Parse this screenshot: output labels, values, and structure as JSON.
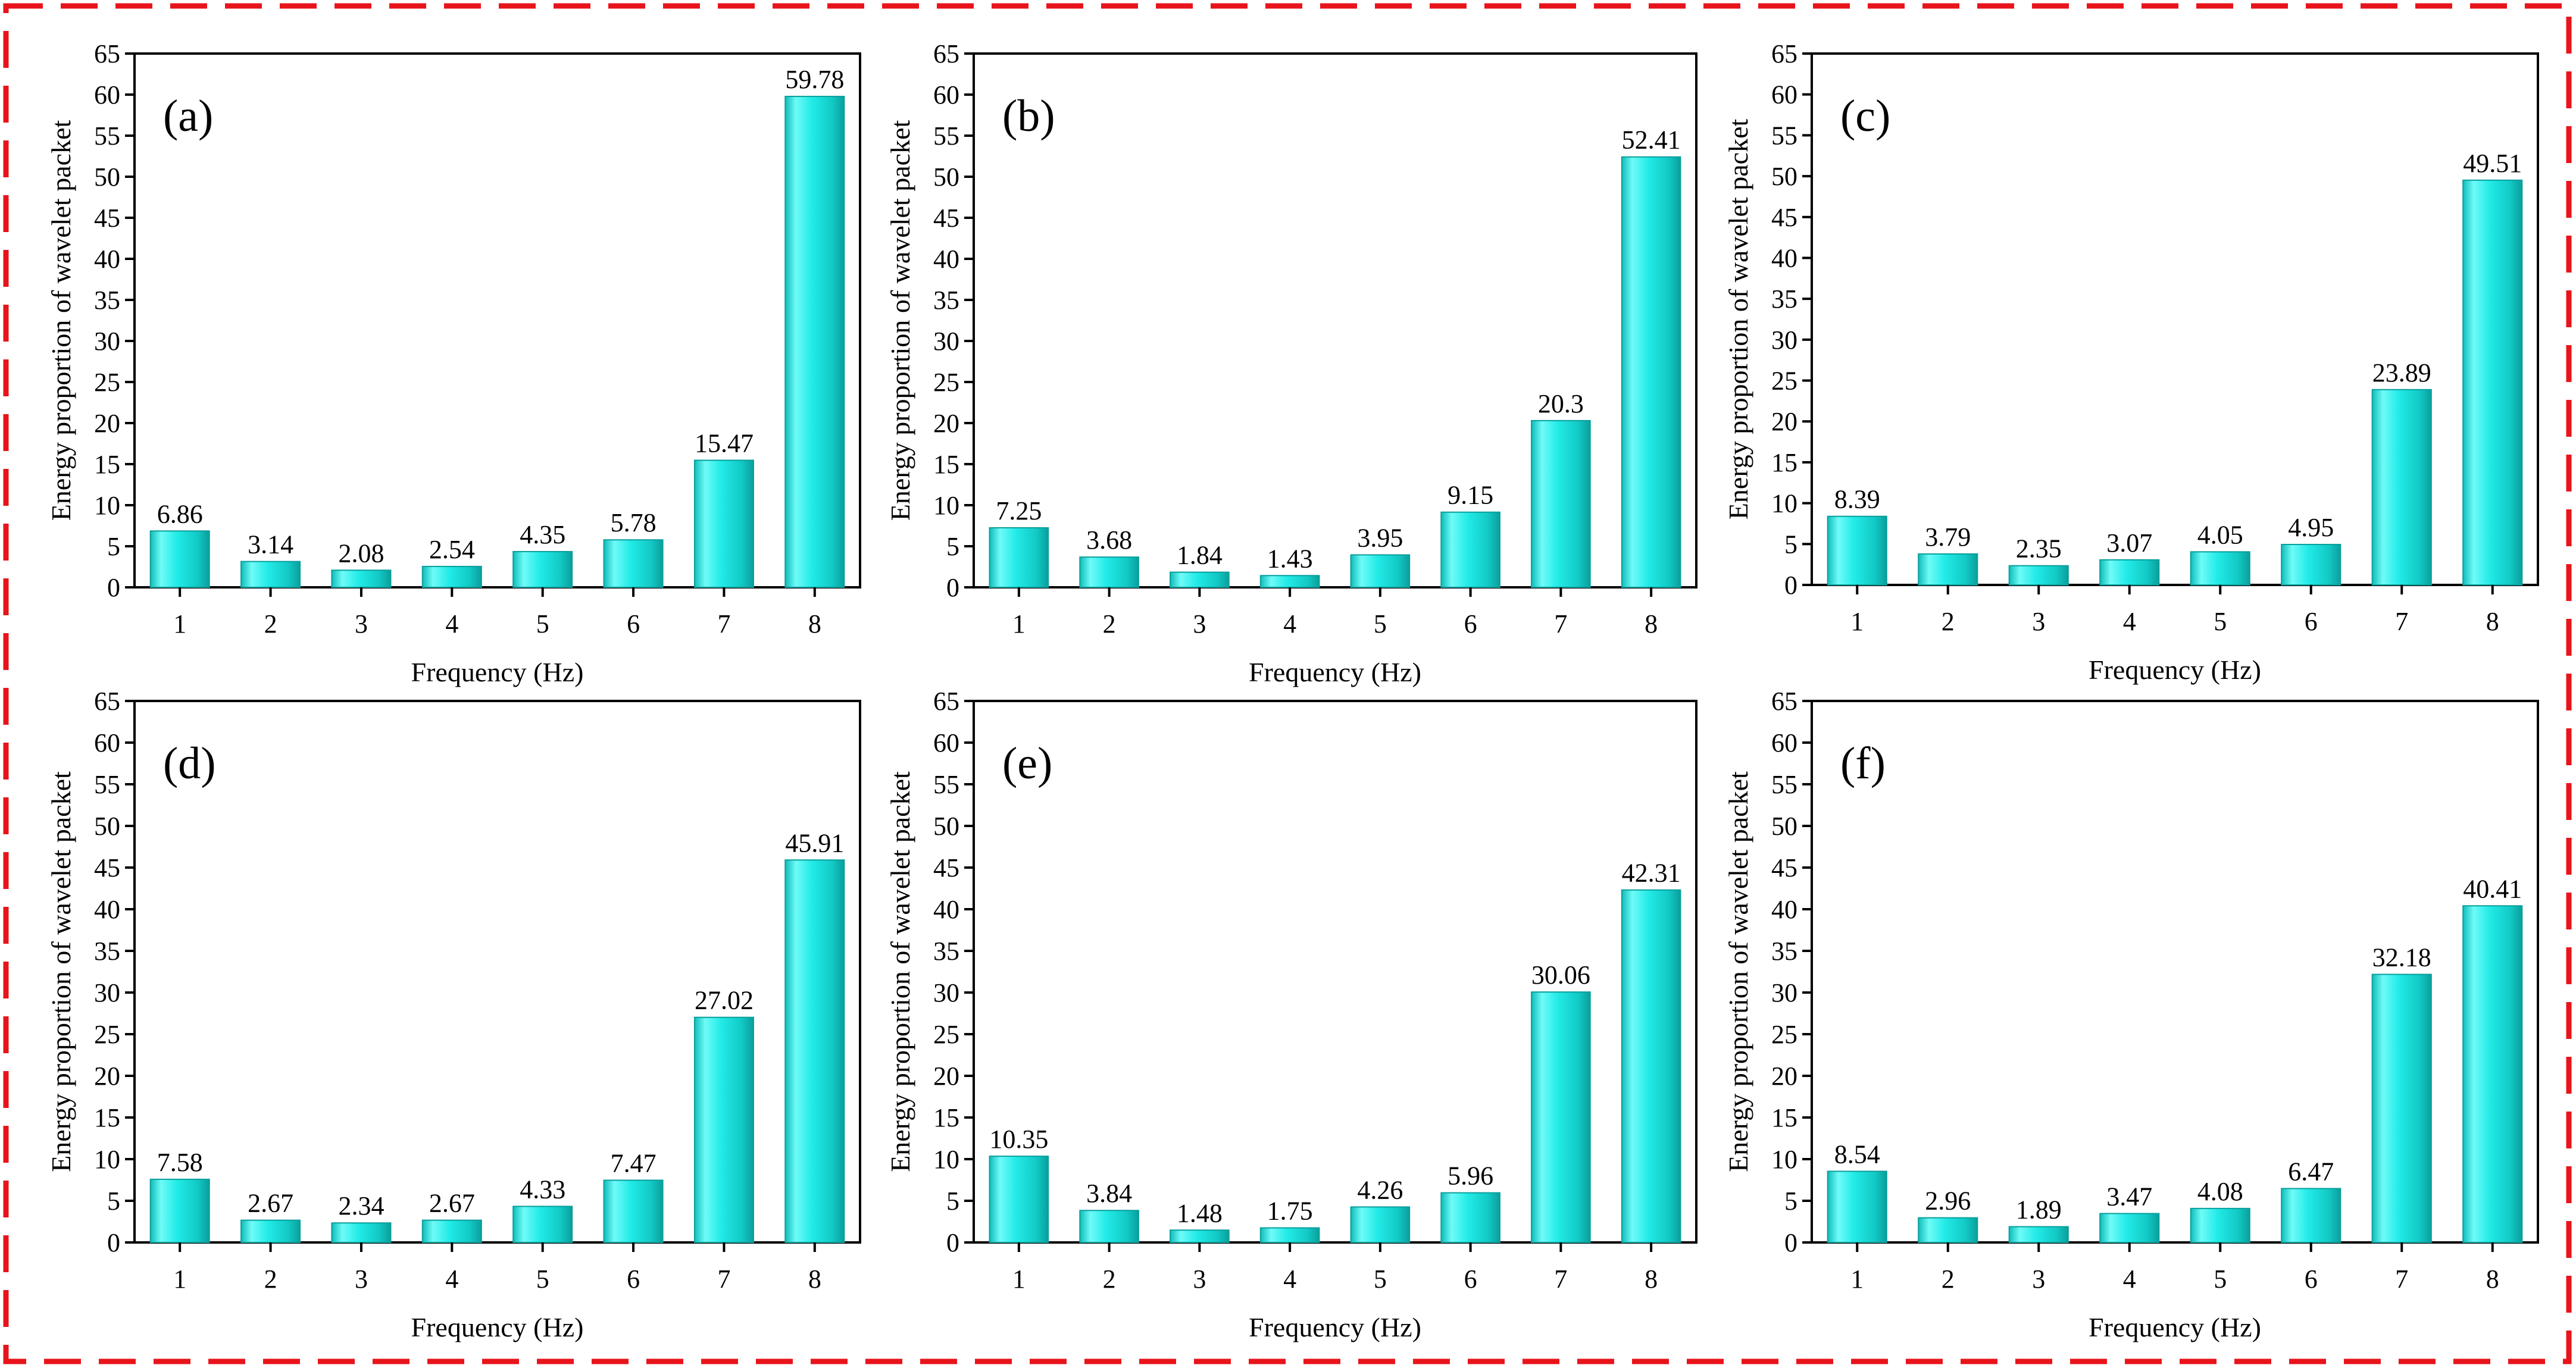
{
  "figure": {
    "border_color": "#e8141b",
    "bar_color": "#18e6e2",
    "bar_edge_color": "#0a9f9c"
  },
  "chart_data": [
    {
      "type": "bar",
      "panel_label": "(a)",
      "categories": [
        "1",
        "2",
        "3",
        "4",
        "5",
        "6",
        "7",
        "8"
      ],
      "values": [
        6.86,
        3.14,
        2.08,
        2.54,
        4.35,
        5.78,
        15.47,
        59.78
      ],
      "value_labels": [
        "6.86",
        "3.14",
        "2.08",
        "2.54",
        "4.35",
        "5.78",
        "15.47",
        "59.78"
      ],
      "xlabel": "Frequency (Hz)",
      "ylabel": "Energy proportion of wavelet packet",
      "ylim": [
        0,
        65
      ],
      "yticks": [
        "0",
        "5",
        "10",
        "15",
        "20",
        "25",
        "30",
        "35",
        "40",
        "45",
        "50",
        "55",
        "60",
        "65"
      ]
    },
    {
      "type": "bar",
      "panel_label": "(b)",
      "categories": [
        "1",
        "2",
        "3",
        "4",
        "5",
        "6",
        "7",
        "8"
      ],
      "values": [
        7.25,
        3.68,
        1.84,
        1.43,
        3.95,
        9.15,
        20.3,
        52.41
      ],
      "value_labels": [
        "7.25",
        "3.68",
        "1.84",
        "1.43",
        "3.95",
        "9.15",
        "20.3",
        "52.41"
      ],
      "xlabel": "Frequency (Hz)",
      "ylabel": "Energy proportion of wavelet packet",
      "ylim": [
        0,
        65
      ],
      "yticks": [
        "0",
        "5",
        "10",
        "15",
        "20",
        "25",
        "30",
        "35",
        "40",
        "45",
        "50",
        "55",
        "60",
        "65"
      ]
    },
    {
      "type": "bar",
      "panel_label": "(c)",
      "categories": [
        "1",
        "2",
        "3",
        "4",
        "5",
        "6",
        "7",
        "8"
      ],
      "values": [
        8.39,
        3.79,
        2.35,
        3.07,
        4.05,
        4.95,
        23.89,
        49.51
      ],
      "value_labels": [
        "8.39",
        "3.79",
        "2.35",
        "3.07",
        "4.05",
        "4.95",
        "23.89",
        "49.51"
      ],
      "xlabel": "Frequency (Hz)",
      "ylabel": "Energy proportion of wavelet packet",
      "ylim": [
        0,
        65
      ],
      "yticks": [
        "0",
        "5",
        "10",
        "15",
        "20",
        "25",
        "30",
        "35",
        "40",
        "45",
        "50",
        "55",
        "60",
        "65"
      ]
    },
    {
      "type": "bar",
      "panel_label": "(d)",
      "categories": [
        "1",
        "2",
        "3",
        "4",
        "5",
        "6",
        "7",
        "8"
      ],
      "values": [
        7.58,
        2.67,
        2.34,
        2.67,
        4.33,
        7.47,
        27.02,
        45.91
      ],
      "value_labels": [
        "7.58",
        "2.67",
        "2.34",
        "2.67",
        "4.33",
        "7.47",
        "27.02",
        "45.91"
      ],
      "xlabel": "Frequency (Hz)",
      "ylabel": "Energy proportion of wavelet packet",
      "ylim": [
        0,
        65
      ],
      "yticks": [
        "0",
        "5",
        "10",
        "15",
        "20",
        "25",
        "30",
        "35",
        "40",
        "45",
        "50",
        "55",
        "60",
        "65"
      ]
    },
    {
      "type": "bar",
      "panel_label": "(e)",
      "categories": [
        "1",
        "2",
        "3",
        "4",
        "5",
        "6",
        "7",
        "8"
      ],
      "values": [
        10.35,
        3.84,
        1.48,
        1.75,
        4.26,
        5.96,
        30.06,
        42.31
      ],
      "value_labels": [
        "10.35",
        "3.84",
        "1.48",
        "1.75",
        "4.26",
        "5.96",
        "30.06",
        "42.31"
      ],
      "xlabel": "Frequency (Hz)",
      "ylabel": "Energy proportion of wavelet packet",
      "ylim": [
        0,
        65
      ],
      "yticks": [
        "0",
        "5",
        "10",
        "15",
        "20",
        "25",
        "30",
        "35",
        "40",
        "45",
        "50",
        "55",
        "60",
        "65"
      ]
    },
    {
      "type": "bar",
      "panel_label": "(f)",
      "categories": [
        "1",
        "2",
        "3",
        "4",
        "5",
        "6",
        "7",
        "8"
      ],
      "values": [
        8.54,
        2.96,
        1.89,
        3.47,
        4.08,
        6.47,
        32.18,
        40.41
      ],
      "value_labels": [
        "8.54",
        "2.96",
        "1.89",
        "3.47",
        "4.08",
        "6.47",
        "32.18",
        "40.41"
      ],
      "xlabel": "Frequency (Hz)",
      "ylabel": "Energy proportion of wavelet packet",
      "ylim": [
        0,
        65
      ],
      "yticks": [
        "0",
        "5",
        "10",
        "15",
        "20",
        "25",
        "30",
        "35",
        "40",
        "45",
        "50",
        "55",
        "60",
        "65"
      ]
    }
  ]
}
